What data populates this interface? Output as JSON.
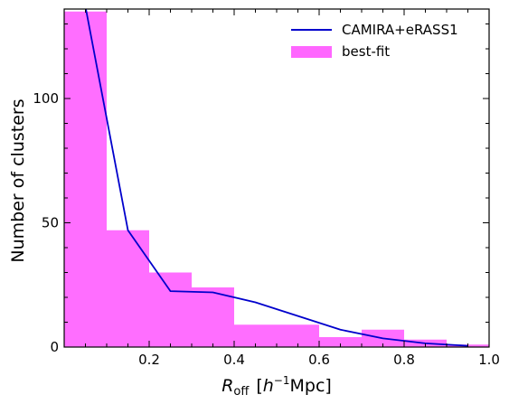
{
  "chart_data": {
    "type": "bar",
    "x_axis": {
      "label_main": "R",
      "label_sub": "off",
      "label_unit_pre": "[",
      "label_unit_h": "h",
      "label_unit_exp": "−1",
      "label_unit_post": "Mpc]",
      "range": [
        0.0,
        1.0
      ],
      "ticks": [
        0.2,
        0.4,
        0.6,
        0.8,
        1.0
      ],
      "tick_labels": [
        "0.2",
        "0.4",
        "0.6",
        "0.8",
        "1.0"
      ]
    },
    "y_axis": {
      "label": "Number of clusters",
      "range": [
        0,
        136
      ],
      "ticks": [
        0,
        50,
        100
      ],
      "tick_labels": [
        "0",
        "50",
        "100"
      ]
    },
    "histogram": {
      "name": "best-fit",
      "color": "#ff66ff",
      "bin_edges": [
        0.0,
        0.1,
        0.2,
        0.3,
        0.4,
        0.5,
        0.6,
        0.7,
        0.8,
        0.9,
        1.0
      ],
      "values": [
        135,
        47,
        30,
        24,
        9,
        9,
        4,
        7,
        3,
        1
      ]
    },
    "line": {
      "name": "CAMIRA+eRASS1",
      "color": "#0000cc",
      "x": [
        0.05,
        0.15,
        0.25,
        0.35,
        0.45,
        0.55,
        0.65,
        0.75,
        0.85,
        0.95
      ],
      "y": [
        137,
        47,
        22.5,
        22,
        18,
        12.5,
        7,
        3.5,
        1.5,
        0.5
      ]
    },
    "legend_position": "top-right",
    "grid": false
  }
}
